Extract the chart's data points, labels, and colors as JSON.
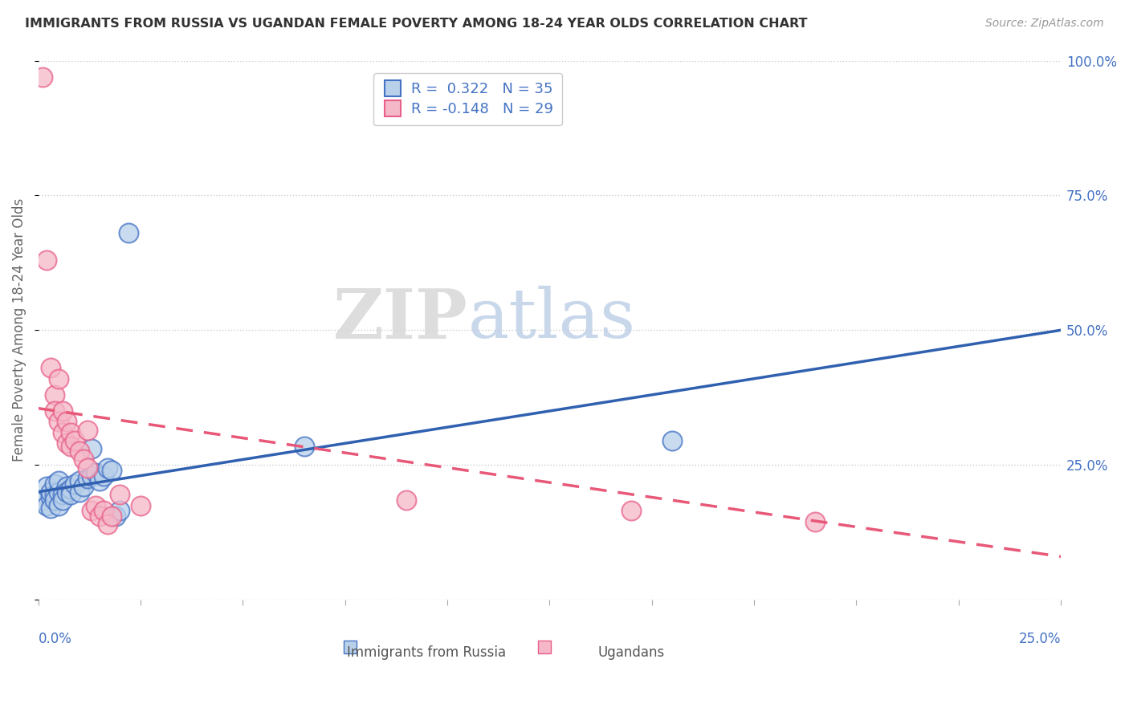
{
  "title": "IMMIGRANTS FROM RUSSIA VS UGANDAN FEMALE POVERTY AMONG 18-24 YEAR OLDS CORRELATION CHART",
  "source": "Source: ZipAtlas.com",
  "ylabel": "Female Poverty Among 18-24 Year Olds",
  "xlim": [
    0.0,
    0.25
  ],
  "ylim": [
    0.0,
    1.0
  ],
  "legend_r1": "R =  0.322",
  "legend_n1": "N = 35",
  "legend_r2": "R = -0.148",
  "legend_n2": "N = 29",
  "blue_fill": "#b8d0ea",
  "pink_fill": "#f5b8c8",
  "blue_edge": "#4472c4",
  "pink_edge": "#e8608a",
  "blue_line_color": "#3060b0",
  "pink_line_color": "#e85878",
  "blue_scatter": [
    [
      0.001,
      0.185
    ],
    [
      0.002,
      0.175
    ],
    [
      0.002,
      0.21
    ],
    [
      0.003,
      0.19
    ],
    [
      0.003,
      0.2
    ],
    [
      0.003,
      0.17
    ],
    [
      0.004,
      0.195
    ],
    [
      0.004,
      0.215
    ],
    [
      0.004,
      0.185
    ],
    [
      0.005,
      0.2
    ],
    [
      0.005,
      0.22
    ],
    [
      0.005,
      0.175
    ],
    [
      0.006,
      0.195
    ],
    [
      0.006,
      0.185
    ],
    [
      0.007,
      0.21
    ],
    [
      0.007,
      0.2
    ],
    [
      0.008,
      0.205
    ],
    [
      0.008,
      0.195
    ],
    [
      0.009,
      0.215
    ],
    [
      0.01,
      0.22
    ],
    [
      0.01,
      0.2
    ],
    [
      0.011,
      0.21
    ],
    [
      0.012,
      0.225
    ],
    [
      0.013,
      0.23
    ],
    [
      0.013,
      0.28
    ],
    [
      0.014,
      0.235
    ],
    [
      0.015,
      0.22
    ],
    [
      0.016,
      0.23
    ],
    [
      0.017,
      0.245
    ],
    [
      0.018,
      0.24
    ],
    [
      0.019,
      0.155
    ],
    [
      0.02,
      0.165
    ],
    [
      0.022,
      0.68
    ],
    [
      0.065,
      0.285
    ],
    [
      0.155,
      0.295
    ]
  ],
  "pink_scatter": [
    [
      0.001,
      0.97
    ],
    [
      0.002,
      0.63
    ],
    [
      0.003,
      0.43
    ],
    [
      0.004,
      0.38
    ],
    [
      0.004,
      0.35
    ],
    [
      0.005,
      0.41
    ],
    [
      0.005,
      0.33
    ],
    [
      0.006,
      0.35
    ],
    [
      0.006,
      0.31
    ],
    [
      0.007,
      0.29
    ],
    [
      0.007,
      0.33
    ],
    [
      0.008,
      0.31
    ],
    [
      0.008,
      0.285
    ],
    [
      0.009,
      0.295
    ],
    [
      0.01,
      0.275
    ],
    [
      0.011,
      0.26
    ],
    [
      0.012,
      0.245
    ],
    [
      0.012,
      0.315
    ],
    [
      0.013,
      0.165
    ],
    [
      0.014,
      0.175
    ],
    [
      0.015,
      0.155
    ],
    [
      0.016,
      0.165
    ],
    [
      0.017,
      0.14
    ],
    [
      0.018,
      0.155
    ],
    [
      0.02,
      0.195
    ],
    [
      0.025,
      0.175
    ],
    [
      0.09,
      0.185
    ],
    [
      0.145,
      0.165
    ],
    [
      0.19,
      0.145
    ]
  ],
  "blue_trend": [
    0.0,
    0.25,
    0.2,
    0.5
  ],
  "pink_trend": [
    0.0,
    0.25,
    0.355,
    0.08
  ],
  "watermark_zip": "ZIP",
  "watermark_atlas": "atlas",
  "background_color": "#ffffff",
  "grid_color": "#cccccc"
}
